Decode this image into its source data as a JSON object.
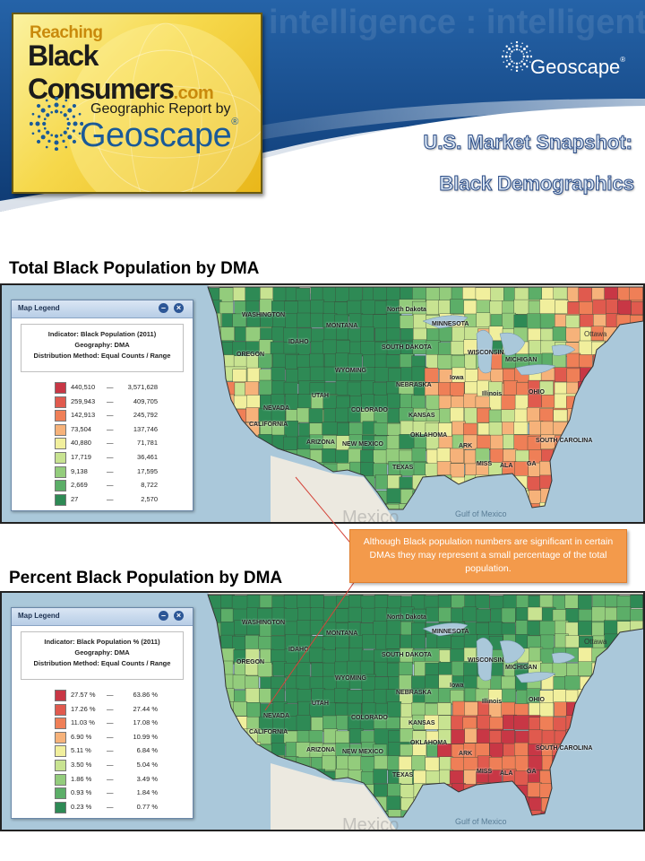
{
  "header": {
    "logo": {
      "line1": "Reaching",
      "line2": "Black Consumers",
      "dotcom": ".com",
      "report_line": "Geographic Report by",
      "brand": "Geoscape",
      "reg": "®"
    },
    "brand_right": "Geoscape",
    "brand_right_reg": "®",
    "snapshot_title": "U.S. Market Snapshot:",
    "snapshot_subtitle": "Black Demographics",
    "background_words": "intelligence : intelligent marketing"
  },
  "maps": [
    {
      "section_title": "Total Black Population by DMA",
      "legend": {
        "window_title": "Map Legend",
        "indicator": "Indicator: Black Population (2011)",
        "geography": "Geography: DMA",
        "method": "Distribution Method: Equal Counts / Range",
        "rows": [
          {
            "min": "440,510",
            "max": "3,571,628",
            "color": "#c83745"
          },
          {
            "min": "259,943",
            "max": "409,705",
            "color": "#e05a4e"
          },
          {
            "min": "142,913",
            "max": "245,792",
            "color": "#ef7f57"
          },
          {
            "min": "73,504",
            "max": "137,746",
            "color": "#f6b27a"
          },
          {
            "min": "40,880",
            "max": "71,781",
            "color": "#f1ef9d"
          },
          {
            "min": "17,719",
            "max": "36,461",
            "color": "#c8e391"
          },
          {
            "min": "9,138",
            "max": "17,595",
            "color": "#93cc7c"
          },
          {
            "min": "2,669",
            "max": "8,722",
            "color": "#5cae68"
          },
          {
            "min": "27",
            "max": "2,570",
            "color": "#2e8a55"
          }
        ]
      }
    },
    {
      "section_title": "Percent Black Population by DMA",
      "legend": {
        "window_title": "Map Legend",
        "indicator": "Indicator: Black Population % (2011)",
        "geography": "Geography: DMA",
        "method": "Distribution Method: Equal Counts / Range",
        "rows": [
          {
            "min": "27.57 %",
            "max": "63.86 %",
            "color": "#c83745"
          },
          {
            "min": "17.26 %",
            "max": "27.44 %",
            "color": "#e05a4e"
          },
          {
            "min": "11.03 %",
            "max": "17.08 %",
            "color": "#ef7f57"
          },
          {
            "min": "6.90 %",
            "max": "10.99 %",
            "color": "#f6b27a"
          },
          {
            "min": "5.11 %",
            "max": "6.84 %",
            "color": "#f1ef9d"
          },
          {
            "min": "3.50 %",
            "max": "5.04 %",
            "color": "#c8e391"
          },
          {
            "min": "1.86 %",
            "max": "3.49 %",
            "color": "#93cc7c"
          },
          {
            "min": "0.93 %",
            "max": "1.84 %",
            "color": "#5cae68"
          },
          {
            "min": "0.23 %",
            "max": "0.77 %",
            "color": "#2e8a55"
          }
        ]
      }
    }
  ],
  "map_labels": {
    "montana": "MONTANA",
    "north_dakota": "North Dakota",
    "south_dakota": "SOUTH DAKOTA",
    "minnesota": "MINNESOTA",
    "washington": "WASHINGTON",
    "oregon": "OREGON",
    "idaho": "IDAHO",
    "wyoming": "WYOMING",
    "nevada": "NEVADA",
    "utah": "UTAH",
    "colorado": "COLORADO",
    "nebraska": "NEBRASKA",
    "kansas": "KANSAS",
    "iowa": "Iowa",
    "illinois": "Illinois",
    "california": "CALIFORNIA",
    "arizona": "ARIZONA",
    "new_mexico": "NEW MEXICO",
    "oklahoma": "OKLAHOMA",
    "texas": "TEXAS",
    "arkansas": "ARK",
    "mississippi": "MISS",
    "alabama": "ALA",
    "georgia": "GA",
    "south_carolina": "SOUTH CAROLINA",
    "ohio": "OHIO",
    "michigan": "MICHIGAN",
    "wisconsin": "WISCONSIN",
    "ottawa": "Ottawa",
    "gulf": "Gulf of Mexico",
    "mexico": "Mexico"
  },
  "callout_text": "Although Black population numbers are significant in certain DMAs they may represent a small percentage of the total population.",
  "colors": {
    "header_blue": "#1a4d8c",
    "callout_orange": "#f39a4b",
    "water": "#aac8da"
  }
}
